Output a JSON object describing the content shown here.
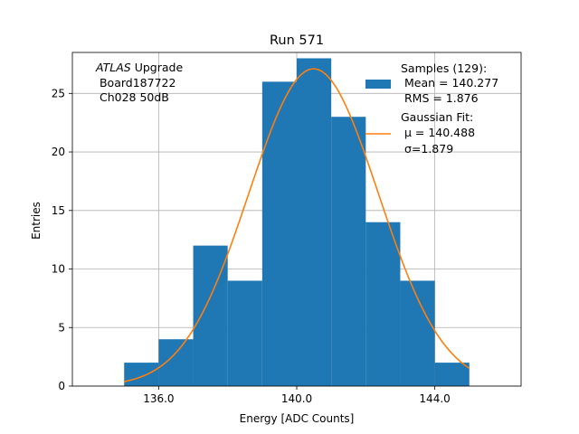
{
  "chart_data": {
    "type": "bar",
    "title": "Run 571",
    "xlabel": "Energy [ADC Counts]",
    "ylabel": "Entries",
    "xlim": [
      133.5,
      146.5
    ],
    "ylim": [
      0,
      28.5
    ],
    "xticks": [
      136.0,
      140.0,
      144.0
    ],
    "xtick_labels": [
      "136.0",
      "140.0",
      "144.0"
    ],
    "yticks": [
      0,
      5,
      10,
      15,
      20,
      25
    ],
    "ytick_labels": [
      "0",
      "5",
      "10",
      "15",
      "20",
      "25"
    ],
    "grid": true,
    "histogram": {
      "name": "Samples (129):",
      "color": "#1f77b4",
      "bin_edges": [
        135.0,
        136.0,
        137.0,
        138.0,
        139.0,
        140.0,
        141.0,
        142.0,
        143.0,
        144.0,
        145.0
      ],
      "counts": [
        2,
        4,
        12,
        9,
        26,
        28,
        23,
        14,
        9,
        2
      ]
    },
    "fit": {
      "name": "Gaussian Fit:",
      "color": "#ff7f0e",
      "mu": 140.488,
      "sigma": 1.879,
      "amplitude": 27.1,
      "x_range": [
        135.0,
        145.0
      ]
    },
    "legend": {
      "placement": "top-right",
      "samples_label": "Samples (129):",
      "samples_mean": " Mean = 140.277",
      "samples_rms": " RMS = 1.876",
      "fit_label": "Gaussian Fit:",
      "fit_mu": " μ = 140.488",
      "fit_sigma": " σ=1.879"
    },
    "annotation": {
      "italic_part": "ATLAS",
      "rest": " Upgrade",
      "line2": " Board187722",
      "line3": " Ch028 50dB"
    }
  }
}
